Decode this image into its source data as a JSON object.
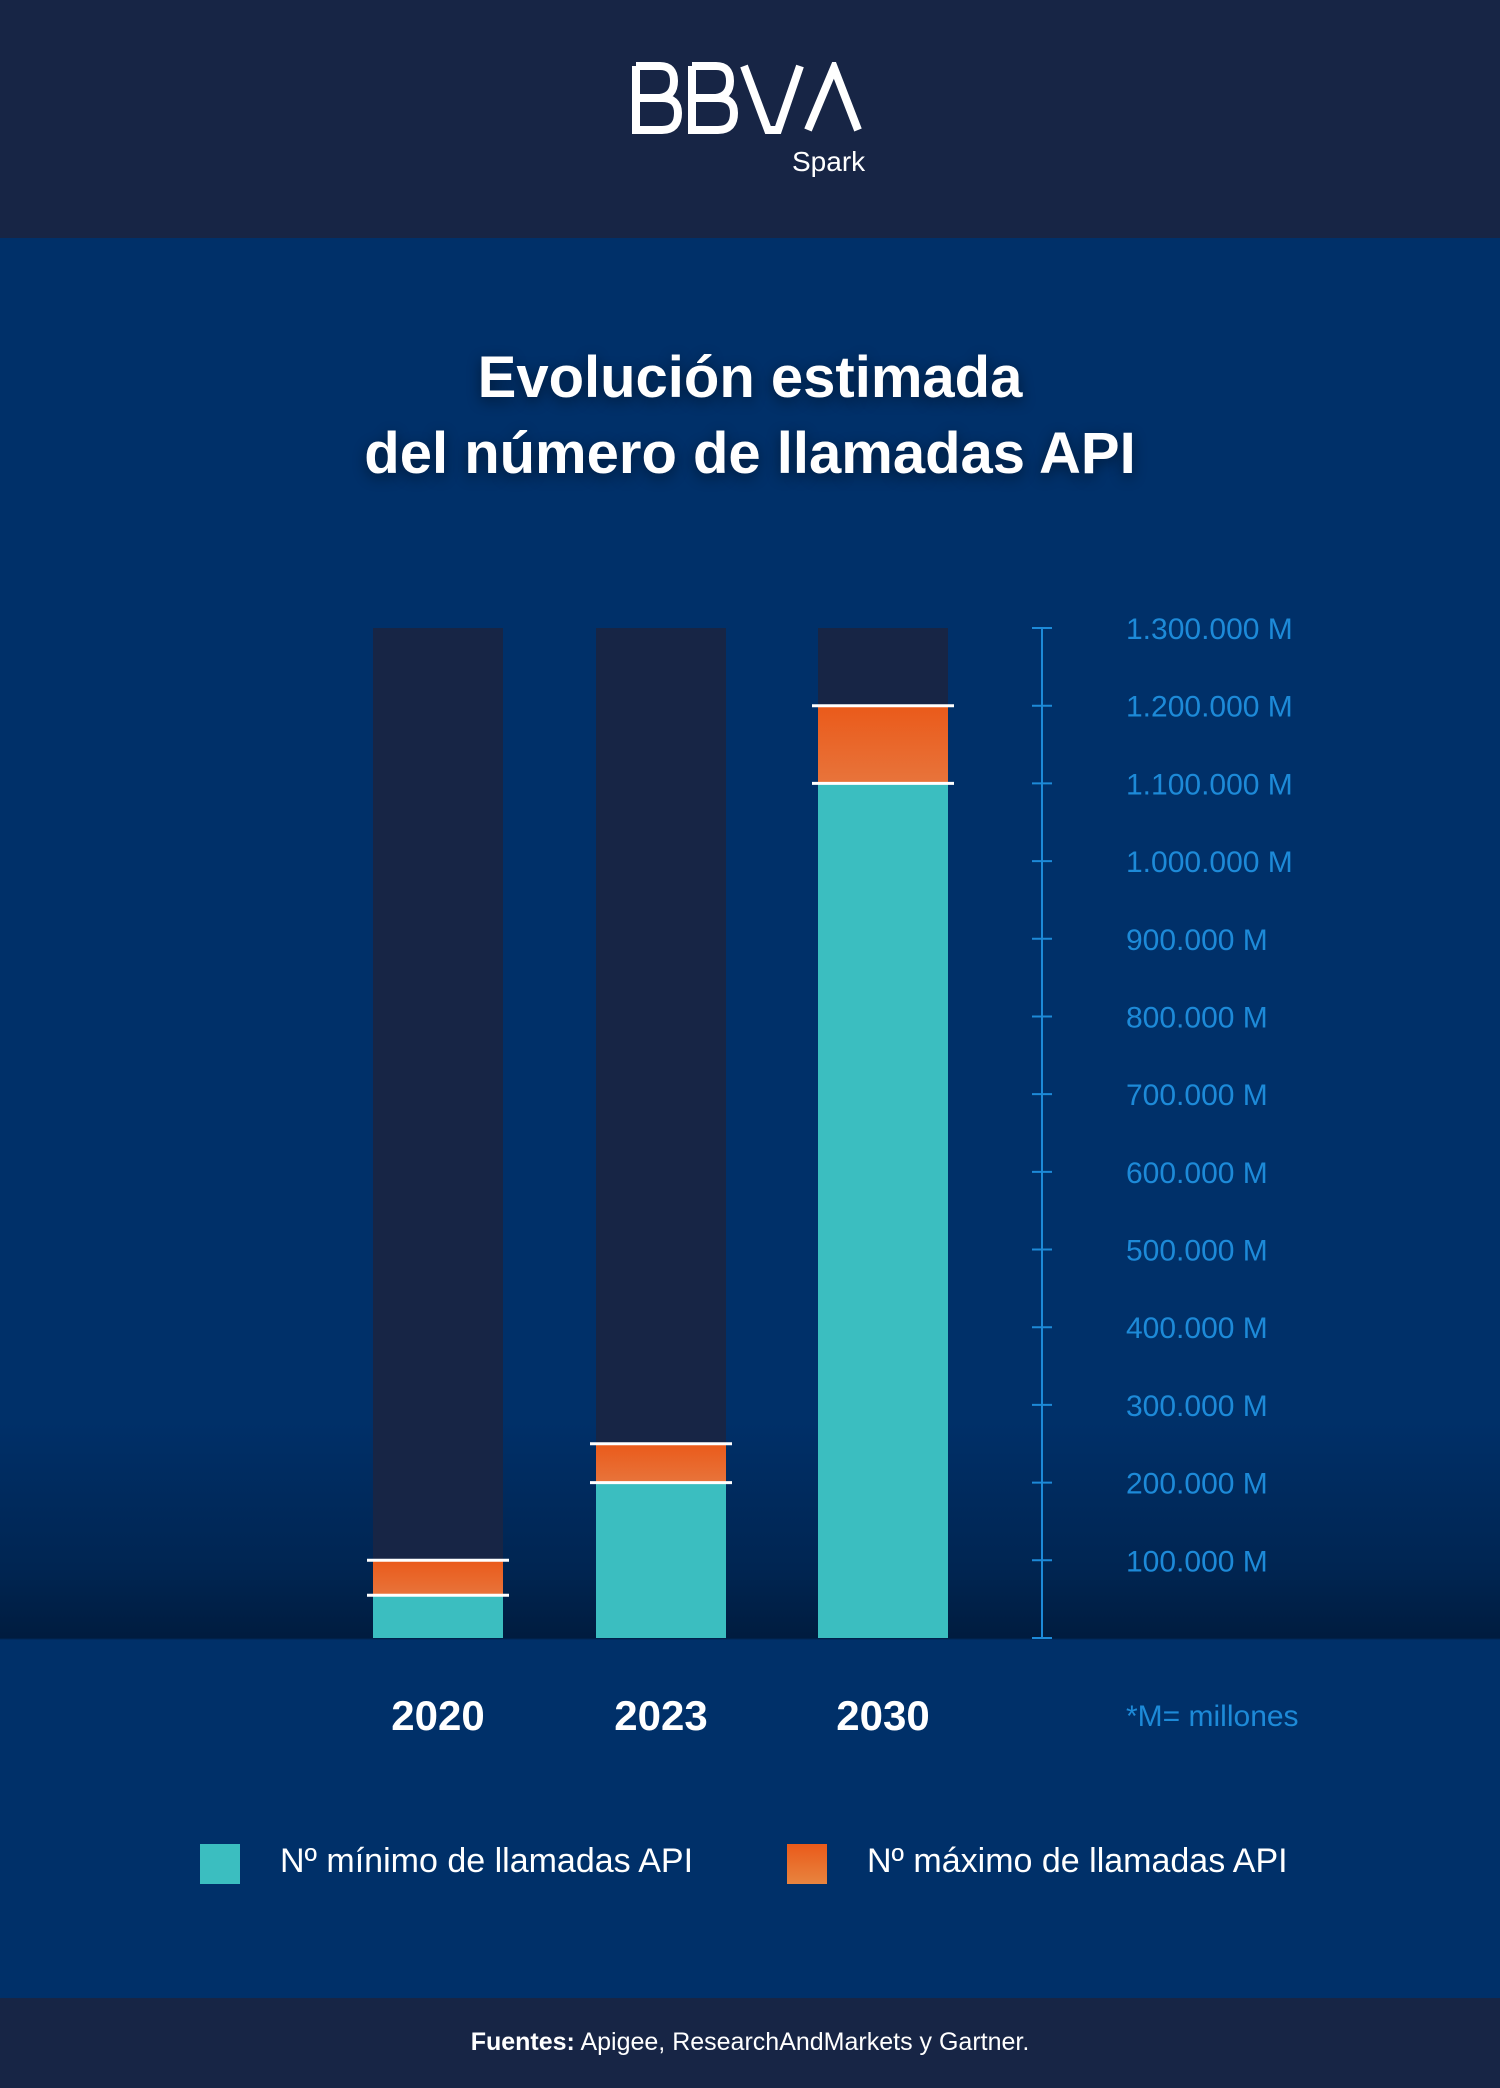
{
  "brand": {
    "name": "BBVA",
    "sub": "Spark"
  },
  "colors": {
    "header_bg": "#172545",
    "page_bg": "#003069",
    "bar_track": "#172545",
    "min_color": "#3bbec0",
    "max_color": "#e8743b",
    "axis_color": "#1d8ad8"
  },
  "title_lines": [
    "Evolución estimada",
    "del número de llamadas API"
  ],
  "note": "*M= millones",
  "footer": {
    "label": "Fuentes:",
    "text": " Apigee, ResearchAndMarkets y Gartner."
  },
  "chart_data": {
    "type": "bar",
    "categories": [
      "2020",
      "2023",
      "2030"
    ],
    "series": [
      {
        "name": "Nº mínimo de llamadas API",
        "values": [
          55000,
          200000,
          1100000
        ]
      },
      {
        "name": "Nº máximo de llamadas API",
        "values": [
          100000,
          250000,
          1200000
        ]
      }
    ],
    "ylim": [
      0,
      1300000
    ],
    "y_ticks": [
      {
        "value": 100000,
        "label": "100.000 M"
      },
      {
        "value": 200000,
        "label": "200.000 M"
      },
      {
        "value": 300000,
        "label": "300.000 M"
      },
      {
        "value": 400000,
        "label": "400.000 M"
      },
      {
        "value": 500000,
        "label": "500.000 M"
      },
      {
        "value": 600000,
        "label": "600.000 M"
      },
      {
        "value": 700000,
        "label": "700.000 M"
      },
      {
        "value": 800000,
        "label": "800.000 M"
      },
      {
        "value": 900000,
        "label": "900.000 M"
      },
      {
        "value": 1000000,
        "label": "1.000.000 M"
      },
      {
        "value": 1100000,
        "label": "1.100.000 M"
      },
      {
        "value": 1200000,
        "label": "1.200.000 M"
      },
      {
        "value": 1300000,
        "label": "1.300.000 M"
      }
    ],
    "y_axis_position": "right",
    "legend_position": "bottom",
    "grid": false
  }
}
